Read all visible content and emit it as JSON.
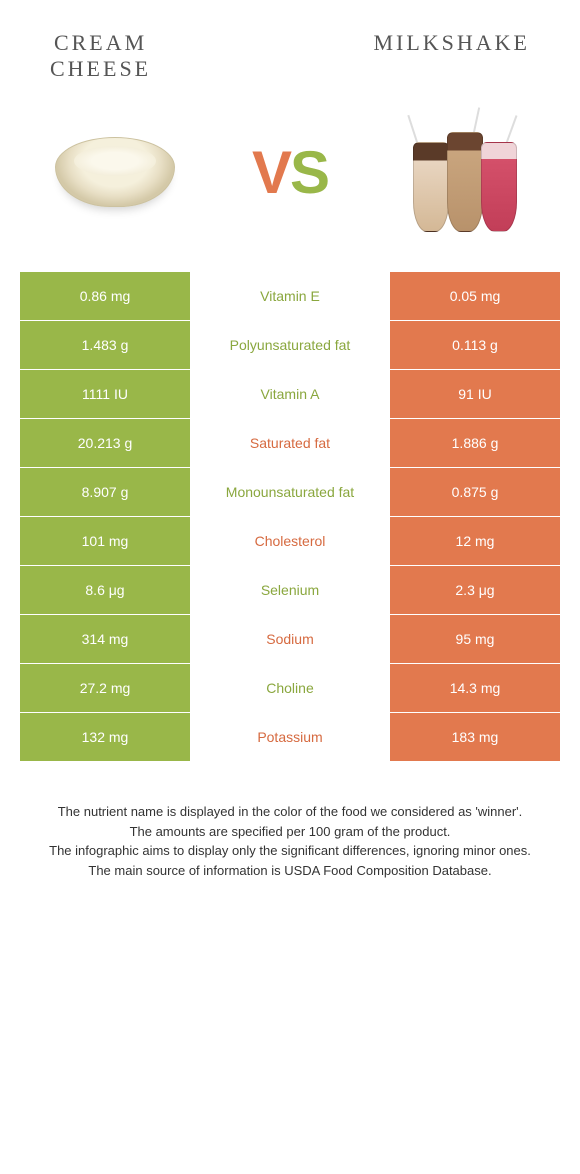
{
  "header": {
    "left_title": "CREAM\nCHEESE",
    "right_title": "MILKSHAKE"
  },
  "vs": {
    "v": "V",
    "s": "S"
  },
  "colors": {
    "green": "#99b749",
    "orange": "#e2794e",
    "mid_green_text": "#8aa73e",
    "mid_orange_text": "#d66a40",
    "background": "#ffffff"
  },
  "table": {
    "left_color": "green",
    "right_color": "orange",
    "rows": [
      {
        "left": "0.86 mg",
        "label": "Vitamin E",
        "right": "0.05 mg",
        "winner": "green"
      },
      {
        "left": "1.483 g",
        "label": "Polyunsaturated fat",
        "right": "0.113 g",
        "winner": "green"
      },
      {
        "left": "1111 IU",
        "label": "Vitamin A",
        "right": "91 IU",
        "winner": "green"
      },
      {
        "left": "20.213 g",
        "label": "Saturated fat",
        "right": "1.886 g",
        "winner": "orange"
      },
      {
        "left": "8.907 g",
        "label": "Monounsaturated fat",
        "right": "0.875 g",
        "winner": "green"
      },
      {
        "left": "101 mg",
        "label": "Cholesterol",
        "right": "12 mg",
        "winner": "orange"
      },
      {
        "left": "8.6 μg",
        "label": "Selenium",
        "right": "2.3 μg",
        "winner": "green"
      },
      {
        "left": "314 mg",
        "label": "Sodium",
        "right": "95 mg",
        "winner": "orange"
      },
      {
        "left": "27.2 mg",
        "label": "Choline",
        "right": "14.3 mg",
        "winner": "green"
      },
      {
        "left": "132 mg",
        "label": "Potassium",
        "right": "183 mg",
        "winner": "orange"
      }
    ]
  },
  "footer": {
    "line1": "The nutrient name is displayed in the color of the food we considered as 'winner'.",
    "line2": "The amounts are specified per 100 gram of the product.",
    "line3": "The infographic aims to display only the significant differences, ignoring minor ones.",
    "line4": "The main source of information is USDA Food Composition Database."
  }
}
